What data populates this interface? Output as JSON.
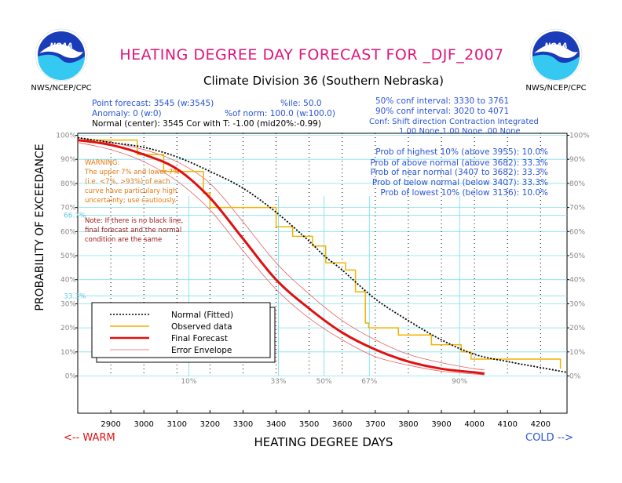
{
  "header": {
    "title": "HEATING DEGREE DAY FORECAST FOR _DJF_2007",
    "subtitle": "Climate Division 36 (Southern Nebraska)",
    "agency_left": "NWS/NCEP/CPC",
    "agency_right": "NWS/NCEP/CPC",
    "logo_text": "NOAA"
  },
  "info": {
    "point_forecast": "Point forecast: 3545 (w:3545)",
    "percentile": "%ile: 50.0",
    "anomaly": "Anomaly: 0 (w:0)",
    "pct_norm": "%of norm:  100.0 (w:100.0)",
    "normal_center": "Normal (center): 3545 Cor with T: -1.00 (mid20%:-0.99)",
    "conf50": "50% conf interval: 3330 to 3761",
    "conf90": "90% conf interval: 3020 to 4071",
    "conf_header": "Conf: Shift direction   Contraction   Integrated",
    "conf_values": "1.00 None      1.00 None   .00 None",
    "probs": [
      "Prob of highest 10% (above 3955): 10.0%",
      "Prob of above normal (above 3682): 33.3%",
      "Prob of near normal (3407 to 3682): 33.3%",
      "Prob of below normal (below 3407): 33.3%",
      "Prob of lowest 10% (below 3136): 10.0%"
    ]
  },
  "warning": {
    "lines": [
      "WARNING:",
      "The upper 7% and lower 7%",
      "(i.e. <7%, >93%) of each",
      "curve have particulary high",
      "uncertainty; use cautiously."
    ]
  },
  "note": {
    "lines": [
      "Note: If there is no black line,",
      "final forecast and  the normal",
      "condition are the same"
    ]
  },
  "directions": {
    "warm": "<-- WARM",
    "cold": "COLD -->"
  },
  "colors": {
    "title": "#e0147a",
    "blue_text": "#2a55d6",
    "orange_text": "#e07a10",
    "note_text": "#a01818",
    "normal": "#000000",
    "observed": "#f0b400",
    "forecast": "#e01010",
    "envelope": "#e86060",
    "grid_cyan": "#7fe0ee",
    "ref_blue": "#2a55d6"
  },
  "chart_data": {
    "type": "line",
    "xlabel": "HEATING DEGREE DAYS",
    "ylabel": "PROBABILITY OF EXCEEDANCE",
    "xlim": [
      2800,
      4280
    ],
    "ylim": [
      0,
      100
    ],
    "x_ticks": [
      2900,
      3000,
      3100,
      3200,
      3300,
      3400,
      3500,
      3600,
      3700,
      3800,
      3900,
      4000,
      4100,
      4200
    ],
    "y_ticks": [
      0,
      10,
      20,
      30,
      40,
      50,
      60,
      70,
      80,
      90,
      100
    ],
    "y_tick_labels": [
      "0%",
      "10%",
      "20%",
      "30%",
      "40%",
      "50%",
      "60%",
      "70%",
      "80%",
      "90%",
      "100%"
    ],
    "ref_lines": {
      "y": [
        66.7,
        33.3
      ],
      "y_labels": [
        "66.7%",
        "33.3%"
      ]
    },
    "percentile_markers": [
      {
        "label": "10%",
        "x": 3136
      },
      {
        "label": "33%",
        "x": 3407
      },
      {
        "label": "50%",
        "x": 3545
      },
      {
        "label": "67%",
        "x": 3682
      },
      {
        "label": "90%",
        "x": 3955
      }
    ],
    "legend": {
      "position": "lower-left",
      "entries": [
        "Normal (Fitted)",
        "Observed data",
        "Final Forecast",
        "Error Envelope"
      ]
    },
    "series": [
      {
        "name": "Normal (Fitted)",
        "style": "dotted",
        "x": [
          2800,
          2900,
          3000,
          3100,
          3200,
          3300,
          3400,
          3500,
          3545,
          3600,
          3700,
          3800,
          3900,
          4000,
          4100,
          4200,
          4280
        ],
        "y": [
          99,
          97,
          95,
          91,
          85,
          78,
          68,
          56,
          50,
          44,
          32,
          23,
          15,
          9,
          6,
          3.5,
          1.5
        ]
      },
      {
        "name": "Observed data",
        "style": "step",
        "x": [
          2800,
          2980,
          2980,
          3060,
          3060,
          3180,
          3180,
          3200,
          3200,
          3400,
          3400,
          3450,
          3450,
          3510,
          3510,
          3550,
          3550,
          3610,
          3610,
          3640,
          3640,
          3670,
          3670,
          3680,
          3680,
          3770,
          3770,
          3870,
          3870,
          3960,
          3960,
          3990,
          3990,
          4260,
          4260
        ],
        "y": [
          98,
          98,
          92,
          92,
          85,
          85,
          76,
          76,
          70,
          70,
          62,
          62,
          58,
          58,
          54,
          54,
          47,
          47,
          44,
          44,
          35,
          35,
          22,
          22,
          20,
          20,
          17,
          17,
          13,
          13,
          10,
          10,
          7,
          7,
          3
        ]
      },
      {
        "name": "Final Forecast",
        "style": "solid",
        "x": [
          2800,
          2900,
          3000,
          3100,
          3200,
          3300,
          3400,
          3500,
          3600,
          3700,
          3800,
          3900,
          4000,
          4030
        ],
        "y": [
          98,
          96,
          92,
          86,
          74,
          57,
          40,
          28,
          18,
          11,
          6,
          3,
          1.5,
          1
        ]
      },
      {
        "name": "Error Envelope",
        "style": "thin",
        "x": [
          2800,
          2900,
          3000,
          3100,
          3200,
          3300,
          3400,
          3500,
          3600,
          3700,
          3800,
          3900,
          4000,
          4030
        ],
        "y": [
          97,
          94,
          89,
          81,
          69,
          52,
          36,
          24,
          15,
          8,
          4.5,
          2,
          0.8,
          0.5
        ]
      },
      {
        "name": "Error Envelope",
        "style": "thin",
        "x": [
          2800,
          2900,
          3000,
          3100,
          3200,
          3300,
          3400,
          3500,
          3600,
          3700,
          3800,
          3900,
          4000,
          4030
        ],
        "y": [
          99,
          97,
          94,
          89,
          80,
          64,
          47,
          34,
          23,
          15,
          9,
          5.5,
          3,
          2.5
        ]
      }
    ]
  }
}
